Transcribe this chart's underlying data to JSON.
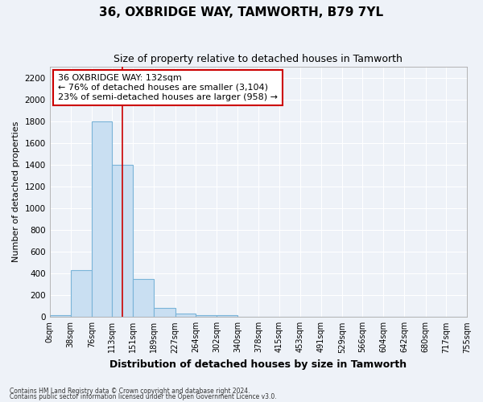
{
  "title": "36, OXBRIDGE WAY, TAMWORTH, B79 7YL",
  "subtitle": "Size of property relative to detached houses in Tamworth",
  "xlabel": "Distribution of detached houses by size in Tamworth",
  "ylabel": "Number of detached properties",
  "footnote1": "Contains HM Land Registry data © Crown copyright and database right 2024.",
  "footnote2": "Contains public sector information licensed under the Open Government Licence v3.0.",
  "bin_edges": [
    0,
    38,
    76,
    113,
    151,
    189,
    227,
    264,
    302,
    340,
    378,
    415,
    453,
    491,
    529,
    566,
    604,
    642,
    680,
    717,
    755
  ],
  "bin_labels": [
    "0sqm",
    "38sqm",
    "76sqm",
    "113sqm",
    "151sqm",
    "189sqm",
    "227sqm",
    "264sqm",
    "302sqm",
    "340sqm",
    "378sqm",
    "415sqm",
    "453sqm",
    "491sqm",
    "529sqm",
    "566sqm",
    "604sqm",
    "642sqm",
    "680sqm",
    "717sqm",
    "755sqm"
  ],
  "bar_heights": [
    20,
    430,
    1800,
    1400,
    350,
    80,
    30,
    20,
    20,
    0,
    0,
    0,
    0,
    0,
    0,
    0,
    0,
    0,
    0,
    0
  ],
  "bar_color": "#c9dff2",
  "bar_edge_color": "#7ab4d8",
  "red_line_x": 132,
  "annotation_text": "36 OXBRIDGE WAY: 132sqm\n← 76% of detached houses are smaller (3,104)\n23% of semi-detached houses are larger (958) →",
  "ylim": [
    0,
    2300
  ],
  "yticks": [
    0,
    200,
    400,
    600,
    800,
    1000,
    1200,
    1400,
    1600,
    1800,
    2000,
    2200
  ],
  "background_color": "#eef2f8",
  "grid_color": "#ffffff",
  "title_fontsize": 11,
  "subtitle_fontsize": 9,
  "annotation_border_color": "#cc0000",
  "annotation_fontsize": 8
}
